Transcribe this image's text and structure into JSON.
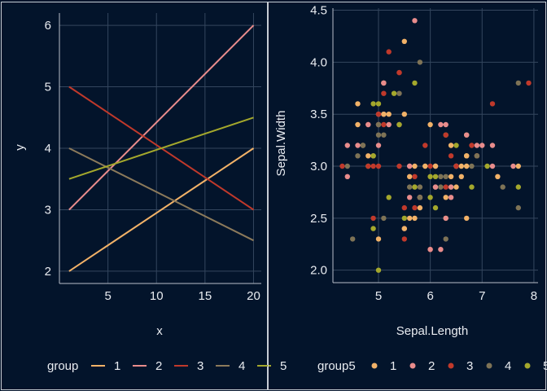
{
  "theme": {
    "background": "#03142b",
    "panel_border": "#c8ccd4",
    "grid": "#34465e",
    "text": "#e9ecf1"
  },
  "chart_data": [
    {
      "type": "line",
      "xlabel": "x",
      "ylabel": "y",
      "xlim": [
        0,
        20.8
      ],
      "ylim": [
        1.8,
        6.2
      ],
      "x_ticks": [
        "5",
        "10",
        "15",
        "20"
      ],
      "y_ticks": [
        "2",
        "3",
        "4",
        "5",
        "6"
      ],
      "grid": true,
      "legend": {
        "title": "group",
        "placement": "bottom"
      },
      "series": [
        {
          "name": "1",
          "color": "#f2b268",
          "points": [
            [
              1,
              2
            ],
            [
              20,
              4
            ]
          ]
        },
        {
          "name": "2",
          "color": "#e98c8c",
          "points": [
            [
              1,
              3
            ],
            [
              20,
              6
            ]
          ]
        },
        {
          "name": "3",
          "color": "#c0392b",
          "points": [
            [
              1,
              5
            ],
            [
              20,
              3
            ]
          ]
        },
        {
          "name": "4",
          "color": "#8c7a5b",
          "points": [
            [
              1,
              4
            ],
            [
              20,
              2.5
            ]
          ]
        },
        {
          "name": "5",
          "color": "#a4a82c",
          "points": [
            [
              1,
              3.5
            ],
            [
              20,
              4.5
            ]
          ]
        }
      ]
    },
    {
      "type": "scatter",
      "xlabel": "Sepal.Length",
      "ylabel": "Sepal.Width",
      "xlim": [
        4.12,
        8.08
      ],
      "ylim": [
        1.88,
        4.52
      ],
      "x_ticks": [
        "5",
        "6",
        "7",
        "8"
      ],
      "y_ticks": [
        "2.0",
        "2.5",
        "3.0",
        "3.5",
        "4.0",
        "4.5"
      ],
      "grid": true,
      "legend": {
        "title": "group5",
        "placement": "bottom"
      },
      "series": [
        {
          "name": "1",
          "color": "#f2b268"
        },
        {
          "name": "2",
          "color": "#e98c8c"
        },
        {
          "name": "3",
          "color": "#c0392b"
        },
        {
          "name": "4",
          "color": "#7e7356"
        },
        {
          "name": "5",
          "color": "#a4a82c"
        }
      ],
      "points": [
        [
          5.1,
          3.5,
          2
        ],
        [
          4.9,
          3.0,
          3
        ],
        [
          4.7,
          3.2,
          1
        ],
        [
          4.6,
          3.1,
          4
        ],
        [
          5.0,
          3.6,
          5
        ],
        [
          5.4,
          3.9,
          3
        ],
        [
          4.6,
          3.4,
          1
        ],
        [
          5.0,
          3.4,
          2
        ],
        [
          4.4,
          2.9,
          2
        ],
        [
          4.9,
          3.1,
          1
        ],
        [
          5.4,
          3.7,
          4
        ],
        [
          4.8,
          3.4,
          3
        ],
        [
          4.8,
          3.0,
          5
        ],
        [
          4.3,
          3.0,
          3
        ],
        [
          5.8,
          4.0,
          4
        ],
        [
          5.7,
          4.4,
          2
        ],
        [
          5.4,
          3.9,
          3
        ],
        [
          5.1,
          3.5,
          1
        ],
        [
          5.7,
          3.8,
          5
        ],
        [
          5.1,
          3.8,
          1
        ],
        [
          5.4,
          3.4,
          2
        ],
        [
          5.1,
          3.7,
          3
        ],
        [
          4.6,
          3.6,
          1
        ],
        [
          5.1,
          3.3,
          4
        ],
        [
          4.8,
          3.4,
          2
        ],
        [
          5.0,
          3.0,
          3
        ],
        [
          5.0,
          3.4,
          4
        ],
        [
          5.2,
          3.5,
          1
        ],
        [
          5.2,
          3.4,
          2
        ],
        [
          4.7,
          3.2,
          4
        ],
        [
          4.8,
          3.1,
          1
        ],
        [
          5.4,
          3.4,
          5
        ],
        [
          5.2,
          4.1,
          3
        ],
        [
          5.5,
          4.2,
          1
        ],
        [
          4.9,
          3.1,
          5
        ],
        [
          5.0,
          3.2,
          2
        ],
        [
          5.5,
          3.5,
          1
        ],
        [
          4.9,
          3.6,
          5
        ],
        [
          4.4,
          3.0,
          4
        ],
        [
          5.1,
          3.4,
          3
        ],
        [
          5.0,
          3.5,
          2
        ],
        [
          4.5,
          2.3,
          4
        ],
        [
          4.4,
          3.2,
          2
        ],
        [
          5.0,
          3.5,
          3
        ],
        [
          5.1,
          3.8,
          1
        ],
        [
          4.8,
          3.0,
          3
        ],
        [
          5.1,
          3.8,
          2
        ],
        [
          4.6,
          3.2,
          2
        ],
        [
          5.3,
          3.7,
          5
        ],
        [
          5.0,
          3.3,
          4
        ],
        [
          7.0,
          3.2,
          2
        ],
        [
          6.4,
          3.2,
          4
        ],
        [
          6.9,
          3.1,
          1
        ],
        [
          5.5,
          2.3,
          3
        ],
        [
          6.5,
          2.8,
          1
        ],
        [
          5.7,
          2.8,
          4
        ],
        [
          6.3,
          3.3,
          5
        ],
        [
          4.9,
          2.4,
          5
        ],
        [
          6.6,
          2.9,
          1
        ],
        [
          5.2,
          2.7,
          5
        ],
        [
          5.0,
          2.0,
          5
        ],
        [
          5.9,
          3.0,
          4
        ],
        [
          6.0,
          2.2,
          3
        ],
        [
          6.1,
          2.9,
          5
        ],
        [
          5.6,
          2.9,
          1
        ],
        [
          6.7,
          3.1,
          2
        ],
        [
          5.6,
          3.0,
          2
        ],
        [
          5.8,
          2.7,
          3
        ],
        [
          6.2,
          2.2,
          2
        ],
        [
          5.6,
          2.5,
          1
        ],
        [
          5.9,
          3.2,
          3
        ],
        [
          6.1,
          2.8,
          1
        ],
        [
          6.3,
          2.5,
          5
        ],
        [
          6.1,
          2.8,
          2
        ],
        [
          6.4,
          2.9,
          1
        ],
        [
          6.6,
          3.0,
          1
        ],
        [
          6.8,
          2.8,
          5
        ],
        [
          6.7,
          3.0,
          4
        ],
        [
          6.0,
          2.9,
          5
        ],
        [
          5.7,
          2.6,
          3
        ],
        [
          5.5,
          2.4,
          2
        ],
        [
          5.5,
          2.4,
          1
        ],
        [
          5.8,
          2.7,
          2
        ],
        [
          6.0,
          2.7,
          5
        ],
        [
          5.4,
          3.0,
          3
        ],
        [
          6.0,
          3.4,
          1
        ],
        [
          6.7,
          3.1,
          5
        ],
        [
          6.3,
          2.3,
          4
        ],
        [
          5.6,
          3.0,
          2
        ],
        [
          5.5,
          2.5,
          5
        ],
        [
          5.5,
          2.6,
          3
        ],
        [
          6.1,
          3.0,
          2
        ],
        [
          5.8,
          2.6,
          1
        ],
        [
          5.0,
          2.3,
          1
        ],
        [
          5.6,
          2.7,
          2
        ],
        [
          5.7,
          3.0,
          1
        ],
        [
          5.7,
          2.9,
          3
        ],
        [
          6.2,
          2.9,
          4
        ],
        [
          5.1,
          2.5,
          4
        ],
        [
          5.7,
          2.8,
          5
        ],
        [
          6.3,
          3.3,
          3
        ],
        [
          5.8,
          2.7,
          1
        ],
        [
          7.1,
          3.0,
          5
        ],
        [
          6.3,
          2.9,
          4
        ],
        [
          6.5,
          3.0,
          1
        ],
        [
          7.6,
          3.0,
          2
        ],
        [
          4.9,
          2.5,
          3
        ],
        [
          7.3,
          2.9,
          1
        ],
        [
          6.7,
          2.5,
          1
        ],
        [
          7.2,
          3.6,
          3
        ],
        [
          6.5,
          3.2,
          5
        ],
        [
          6.4,
          2.7,
          2
        ],
        [
          6.8,
          3.0,
          4
        ],
        [
          5.7,
          2.5,
          1
        ],
        [
          5.8,
          2.8,
          4
        ],
        [
          6.4,
          3.2,
          1
        ],
        [
          6.5,
          3.0,
          2
        ],
        [
          7.7,
          3.8,
          4
        ],
        [
          7.7,
          2.6,
          4
        ],
        [
          6.0,
          2.2,
          2
        ],
        [
          6.9,
          3.2,
          2
        ],
        [
          5.6,
          2.8,
          4
        ],
        [
          7.7,
          2.8,
          5
        ],
        [
          6.3,
          2.7,
          1
        ],
        [
          6.7,
          3.3,
          5
        ],
        [
          7.2,
          3.2,
          2
        ],
        [
          6.2,
          2.8,
          4
        ],
        [
          6.1,
          3.0,
          1
        ],
        [
          6.4,
          2.8,
          5
        ],
        [
          7.2,
          3.0,
          2
        ],
        [
          7.4,
          2.8,
          4
        ],
        [
          7.9,
          3.8,
          3
        ],
        [
          6.4,
          2.8,
          2
        ],
        [
          6.3,
          2.8,
          3
        ],
        [
          6.1,
          2.6,
          5
        ],
        [
          7.7,
          3.0,
          1
        ],
        [
          6.3,
          3.4,
          2
        ],
        [
          6.4,
          3.1,
          3
        ],
        [
          6.0,
          3.0,
          3
        ],
        [
          6.9,
          3.1,
          3
        ],
        [
          6.7,
          3.1,
          1
        ],
        [
          6.9,
          3.1,
          4
        ],
        [
          5.8,
          2.7,
          4
        ],
        [
          6.8,
          3.2,
          3
        ],
        [
          6.7,
          3.3,
          2
        ],
        [
          6.7,
          3.0,
          1
        ],
        [
          6.3,
          2.5,
          2
        ],
        [
          6.5,
          3.0,
          3
        ],
        [
          6.2,
          3.4,
          2
        ],
        [
          5.9,
          3.0,
          1
        ]
      ]
    }
  ]
}
